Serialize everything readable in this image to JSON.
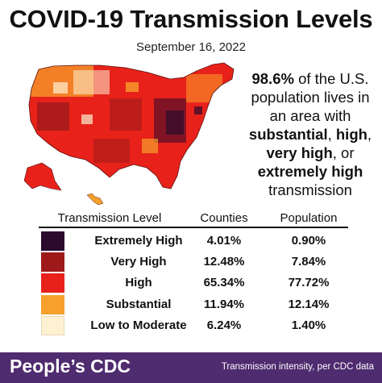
{
  "title": "COVID-19 Transmission Levels",
  "date": "September 16, 2022",
  "callout": {
    "percent": "98.6%",
    "text1": " of the U.S. population lives in an area with ",
    "substantial": "substantial",
    "comma1": ", ",
    "high": "high",
    "comma2": ", ",
    "very_high": "very high",
    "or": ", or ",
    "extremely_high": "extremely high",
    "text2": " transmission"
  },
  "colors": {
    "extremely_high": "#2b0a2e",
    "very_high": "#9e1a1a",
    "high": "#e8221a",
    "substantial": "#f7a02c",
    "low_to_moderate": "#fdf1d2",
    "footer": "#4f2b6f"
  },
  "chart_data": {
    "type": "table",
    "columns": [
      "Transmission Level",
      "Counties",
      "Population"
    ],
    "rows": [
      {
        "level": "Extremely High",
        "counties": "4.01%",
        "population": "0.90%",
        "color": "#2b0a2e"
      },
      {
        "level": "Very High",
        "counties": "12.48%",
        "population": "7.84%",
        "color": "#9e1a1a"
      },
      {
        "level": "High",
        "counties": "65.34%",
        "population": "77.72%",
        "color": "#e8221a"
      },
      {
        "level": "Substantial",
        "counties": "11.94%",
        "population": "12.14%",
        "color": "#f7a02c"
      },
      {
        "level": "Low to Moderate",
        "counties": "6.24%",
        "population": "1.40%",
        "color": "#fdf1d2"
      }
    ]
  },
  "footer": {
    "brand": "People’s CDC",
    "source": "Transmission intensity, per CDC data"
  }
}
